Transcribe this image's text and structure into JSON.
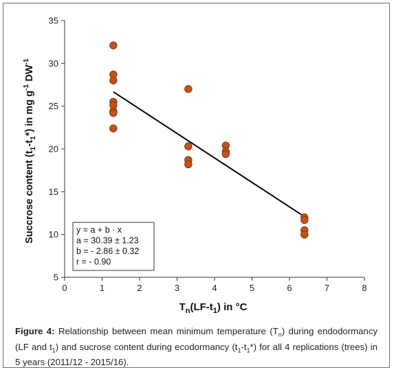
{
  "chart_data": {
    "type": "scatter",
    "xlabel": {
      "main": "T",
      "sub1": "n",
      "mid": "(LF-t",
      "sub2": "1",
      "end": ") in °C"
    },
    "ylabel": {
      "p1": "Succrose content (t",
      "s1": "1",
      "p2": "-t",
      "s2": "1",
      "p3": "*) in mg g",
      "sup": "-1",
      "p4": " DW",
      "sup2": "-1"
    },
    "xlim": [
      0,
      8
    ],
    "ylim": [
      5,
      35
    ],
    "x_ticks": [
      0,
      1,
      2,
      3,
      4,
      5,
      6,
      7,
      8
    ],
    "y_ticks": [
      5,
      10,
      15,
      20,
      25,
      30,
      35
    ],
    "grid": false,
    "points": [
      {
        "x": 1.3,
        "y": 32.1
      },
      {
        "x": 1.3,
        "y": 28.7
      },
      {
        "x": 1.3,
        "y": 28.0
      },
      {
        "x": 1.3,
        "y": 25.5
      },
      {
        "x": 1.3,
        "y": 25.1
      },
      {
        "x": 1.3,
        "y": 24.4
      },
      {
        "x": 1.3,
        "y": 24.2
      },
      {
        "x": 1.3,
        "y": 22.4
      },
      {
        "x": 3.3,
        "y": 27.0
      },
      {
        "x": 3.3,
        "y": 20.3
      },
      {
        "x": 3.3,
        "y": 18.7
      },
      {
        "x": 3.3,
        "y": 18.2
      },
      {
        "x": 4.3,
        "y": 20.4
      },
      {
        "x": 4.3,
        "y": 19.7
      },
      {
        "x": 4.3,
        "y": 19.4
      },
      {
        "x": 6.4,
        "y": 12.0
      },
      {
        "x": 6.4,
        "y": 11.7
      },
      {
        "x": 6.4,
        "y": 10.5
      },
      {
        "x": 6.4,
        "y": 10.0
      }
    ],
    "fit_line": {
      "x": [
        1.3,
        6.4
      ],
      "a": 30.39,
      "b": -2.86
    },
    "legend": {
      "lines": [
        "y = a + b · x",
        "a = 30.39 ± 1.23",
        "b = - 2.86 ± 0.32",
        "r =  - 0.90"
      ]
    },
    "colors": {
      "marker_fill": "#c4521c",
      "marker_edge": "#7a2c0c",
      "line": "#000000"
    }
  },
  "caption": {
    "label": "Figure 4:",
    "segments": [
      {
        "t": " Relationship between mean minimum temperature (T"
      },
      {
        "sub": "n"
      },
      {
        "t": ") during endodormancy (LF and t"
      },
      {
        "sub": "1"
      },
      {
        "t": ") and sucrose content during ecodormancy (t"
      },
      {
        "sub": "1"
      },
      {
        "t": "-t"
      },
      {
        "sub": "1"
      },
      {
        "t": "*) for all 4 replications (trees) in 5 years (2011/12 - 2015/16)."
      }
    ]
  }
}
